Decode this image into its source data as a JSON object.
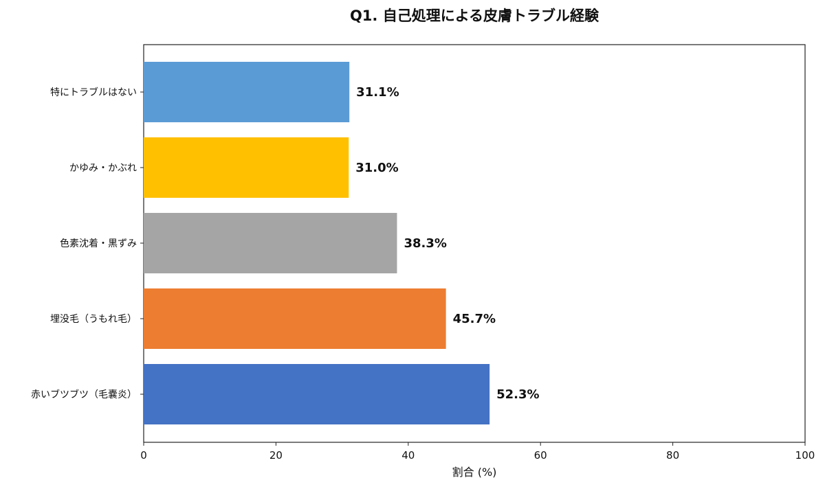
{
  "chart_data": {
    "type": "bar",
    "orientation": "horizontal",
    "title": "Q1. 自己処理による皮膚トラブル経験",
    "xlabel": "割合 (%)",
    "ylabel": "",
    "xlim": [
      0,
      100
    ],
    "x_ticks": [
      "0",
      "20",
      "40",
      "60",
      "80",
      "100"
    ],
    "grid": false,
    "categories": [
      "特にトラブルはない",
      "かゆみ・かぶれ",
      "色素沈着・黒ずみ",
      "埋没毛（うもれ毛）",
      "赤いブツブツ（毛嚢炎）"
    ],
    "values": [
      31.1,
      31.0,
      38.3,
      45.7,
      52.3
    ],
    "value_labels": [
      "31.1%",
      "31.0%",
      "38.3%",
      "45.7%",
      "52.3%"
    ],
    "colors": [
      "#5b9bd5",
      "#ffc000",
      "#a5a5a5",
      "#ed7d31",
      "#4472c4"
    ]
  }
}
